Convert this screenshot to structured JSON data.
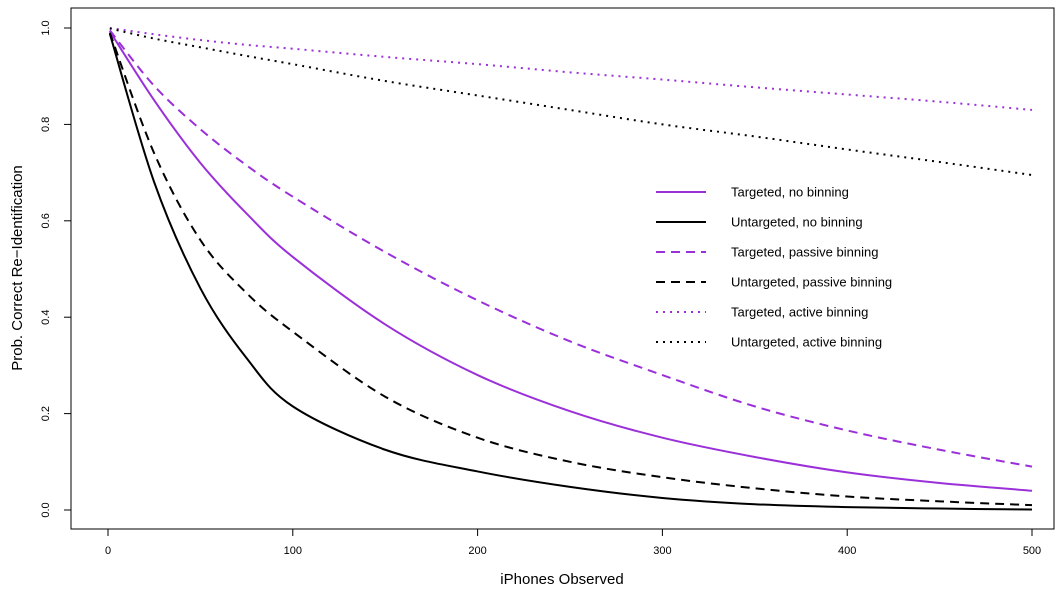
{
  "chart_data": {
    "type": "line",
    "title": "",
    "xlabel": "iPhones Observed",
    "ylabel": "Prob. Correct Re−Identification",
    "xlim": [
      0,
      500
    ],
    "ylim": [
      0,
      1
    ],
    "x_ticks": [
      0,
      100,
      200,
      300,
      400,
      500
    ],
    "y_ticks": [
      0.0,
      0.2,
      0.4,
      0.6,
      0.8,
      1.0
    ],
    "x_tick_labels": [
      "0",
      "100",
      "200",
      "300",
      "400",
      "500"
    ],
    "y_tick_labels": [
      "0.0",
      "0.2",
      "0.4",
      "0.6",
      "0.8",
      "1.0"
    ],
    "grid": false,
    "legend_position": "right",
    "x": [
      1,
      25,
      50,
      75,
      100,
      150,
      200,
      250,
      300,
      350,
      400,
      450,
      500
    ],
    "series": [
      {
        "name": "Targeted, no binning",
        "color": "#9B30D9",
        "style": "solid",
        "values": [
          0.993,
          0.85,
          0.72,
          0.615,
          0.525,
          0.385,
          0.28,
          0.205,
          0.15,
          0.11,
          0.078,
          0.056,
          0.04
        ]
      },
      {
        "name": "Untargeted, no binning",
        "color": "#000000",
        "style": "solid",
        "values": [
          0.988,
          0.68,
          0.46,
          0.315,
          0.215,
          0.125,
          0.08,
          0.048,
          0.025,
          0.012,
          0.006,
          0.003,
          0.001
        ]
      },
      {
        "name": "Targeted, passive binning",
        "color": "#9B30D9",
        "style": "dashed",
        "values": [
          0.995,
          0.88,
          0.79,
          0.715,
          0.65,
          0.535,
          0.435,
          0.35,
          0.28,
          0.215,
          0.165,
          0.125,
          0.09
        ]
      },
      {
        "name": "Untargeted, passive binning",
        "color": "#000000",
        "style": "dashed",
        "values": [
          0.99,
          0.74,
          0.56,
          0.45,
          0.37,
          0.235,
          0.15,
          0.1,
          0.068,
          0.045,
          0.028,
          0.018,
          0.01
        ]
      },
      {
        "name": "Targeted, active binning",
        "color": "#9B30D9",
        "style": "dotted",
        "values": [
          1.0,
          0.987,
          0.975,
          0.965,
          0.957,
          0.94,
          0.925,
          0.908,
          0.893,
          0.877,
          0.862,
          0.847,
          0.83
        ]
      },
      {
        "name": "Untargeted, active binning",
        "color": "#000000",
        "style": "dotted",
        "values": [
          0.999,
          0.978,
          0.96,
          0.942,
          0.925,
          0.89,
          0.86,
          0.83,
          0.8,
          0.775,
          0.748,
          0.722,
          0.695
        ]
      }
    ]
  }
}
